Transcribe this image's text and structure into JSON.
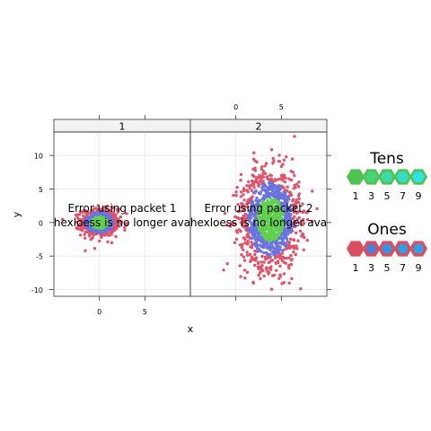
{
  "chart_data": {
    "type": "scatter",
    "subtype": "hexbin-lattice",
    "title": "",
    "xlabel": "x",
    "ylabel": "y",
    "xlim": [
      -5,
      10
    ],
    "ylim": [
      -11,
      13.5
    ],
    "x_ticks": [
      0,
      5
    ],
    "y_ticks": [
      -10,
      -5,
      0,
      5,
      10
    ],
    "grid": true,
    "panels": [
      {
        "strip": "1",
        "error_lines": [
          "Error using packet 1",
          "hexloess is no longer ava"
        ],
        "cluster": {
          "center_x": 0,
          "center_y": 0,
          "spread_x": 1.0,
          "spread_y": 1.0
        },
        "x_ticks_bottom": [
          "0",
          "5"
        ]
      },
      {
        "strip": "2",
        "error_lines": [
          "Error using packet 2",
          "hexloess is no longer ava"
        ],
        "cluster": {
          "center_x": 3.8,
          "center_y": 0.5,
          "spread_x": 1.6,
          "spread_y": 3.6
        },
        "x_ticks_top": [
          "0",
          "5"
        ]
      }
    ],
    "legends": [
      {
        "title": "Tens",
        "labels": [
          "1",
          "3",
          "5",
          "7",
          "9"
        ],
        "colors": [
          "#4fc24f",
          "#49d17a",
          "#3fd9a8",
          "#38dcc9",
          "#2fe0e6"
        ],
        "border": "#4fc24f"
      },
      {
        "title": "Ones",
        "labels": [
          "1",
          "3",
          "5",
          "7",
          "9"
        ],
        "colors": [
          "#d94f5f",
          "#4f7fdd",
          "#3593e6",
          "#2b9ee6",
          "#2aa3ea"
        ],
        "border": "#d94f5f"
      }
    ],
    "colors": {
      "outer": "#df536b",
      "mid": "#6a73de",
      "inner": "#61d04f",
      "strip_bg": "#f2f2f2",
      "grid": "#e6e6e6"
    }
  }
}
